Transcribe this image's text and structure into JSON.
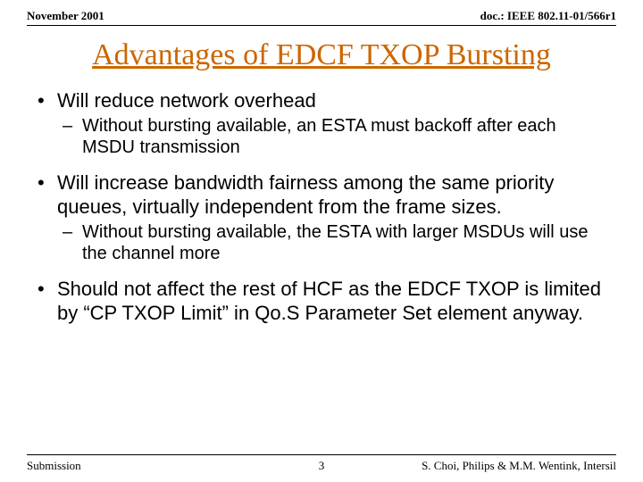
{
  "header": {
    "left": "November 2001",
    "right": "doc.: IEEE 802.11-01/566r1"
  },
  "title": "Advantages of EDCF TXOP Bursting",
  "title_color": "#cc6600",
  "title_fontsize": 34,
  "bullets": [
    {
      "text": "Will reduce network overhead",
      "sub": [
        "Without bursting available, an ESTA must backoff after each MSDU transmission"
      ]
    },
    {
      "text": "Will increase bandwidth fairness among the same priority queues, virtually independent from the frame sizes.",
      "sub": [
        "Without bursting available, the ESTA with larger MSDUs will use the channel more"
      ]
    },
    {
      "text": "Should not affect the rest of HCF as the EDCF TXOP is limited by “CP TXOP Limit” in Qo.S Parameter Set element anyway.",
      "sub": []
    }
  ],
  "footer": {
    "left": "Submission",
    "page": "3",
    "right": "S. Choi, Philips & M.M. Wentink, Intersil"
  },
  "colors": {
    "text": "#000000",
    "background": "#ffffff",
    "rule": "#000000"
  },
  "body_fontsize": 22,
  "sub_fontsize": 20
}
